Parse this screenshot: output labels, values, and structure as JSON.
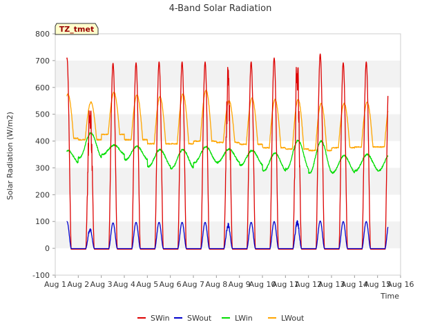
{
  "chart_data": {
    "type": "line",
    "title": "4-Band Solar Radiation",
    "xlabel": "Time",
    "ylabel": "Solar Radiation (W/m2)",
    "xlim": [
      1,
      16
    ],
    "ylim": [
      -100,
      800
    ],
    "x_ticks": [
      {
        "value": 1,
        "label": "Aug 1"
      },
      {
        "value": 2,
        "label": "Aug 2"
      },
      {
        "value": 3,
        "label": "Aug 3"
      },
      {
        "value": 4,
        "label": "Aug 4"
      },
      {
        "value": 5,
        "label": "Aug 5"
      },
      {
        "value": 6,
        "label": "Aug 6"
      },
      {
        "value": 7,
        "label": "Aug 7"
      },
      {
        "value": 8,
        "label": "Aug 8"
      },
      {
        "value": 9,
        "label": "Aug 9"
      },
      {
        "value": 10,
        "label": "Aug 10"
      },
      {
        "value": 11,
        "label": "Aug 11"
      },
      {
        "value": 12,
        "label": "Aug 12"
      },
      {
        "value": 13,
        "label": "Aug 13"
      },
      {
        "value": 14,
        "label": "Aug 14"
      },
      {
        "value": 15,
        "label": "Aug 15"
      },
      {
        "value": 16,
        "label": "Aug 16"
      }
    ],
    "y_ticks": [
      -100,
      0,
      100,
      200,
      300,
      400,
      500,
      600,
      700,
      800
    ],
    "grid": "horizontal bands",
    "annotation": "TZ_tmet",
    "legend_position": "bottom",
    "data_range_x": [
      1.5,
      15.45
    ],
    "daily": [
      {
        "day": 1,
        "swin_peak": 710,
        "swout_peak": 100,
        "lwin_min": 318,
        "lwin_max": 365,
        "lwout_min": 410,
        "lwout_max": 575
      },
      {
        "day": 2,
        "swin_peak": 575,
        "swout_peak": 78,
        "lwin_min": 338,
        "lwin_max": 430,
        "lwout_min": 405,
        "lwout_max": 545
      },
      {
        "day": 3,
        "swin_peak": 690,
        "swout_peak": 95,
        "lwin_min": 350,
        "lwin_max": 385,
        "lwout_min": 425,
        "lwout_max": 582
      },
      {
        "day": 4,
        "swin_peak": 692,
        "swout_peak": 97,
        "lwin_min": 330,
        "lwin_max": 380,
        "lwout_min": 405,
        "lwout_max": 572
      },
      {
        "day": 5,
        "swin_peak": 695,
        "swout_peak": 97,
        "lwin_min": 305,
        "lwin_max": 368,
        "lwout_min": 390,
        "lwout_max": 565
      },
      {
        "day": 6,
        "swin_peak": 695,
        "swout_peak": 97,
        "lwin_min": 298,
        "lwin_max": 368,
        "lwout_min": 390,
        "lwout_max": 575
      },
      {
        "day": 7,
        "swin_peak": 695,
        "swout_peak": 97,
        "lwin_min": 320,
        "lwin_max": 378,
        "lwout_min": 400,
        "lwout_max": 590
      },
      {
        "day": 8,
        "swin_peak": 690,
        "swout_peak": 95,
        "lwin_min": 320,
        "lwin_max": 370,
        "lwout_min": 395,
        "lwout_max": 550
      },
      {
        "day": 9,
        "swin_peak": 695,
        "swout_peak": 97,
        "lwin_min": 310,
        "lwin_max": 365,
        "lwout_min": 388,
        "lwout_max": 560
      },
      {
        "day": 10,
        "swin_peak": 710,
        "swout_peak": 100,
        "lwin_min": 288,
        "lwin_max": 355,
        "lwout_min": 375,
        "lwout_max": 555
      },
      {
        "day": 11,
        "swin_peak": 745,
        "swout_peak": 108,
        "lwin_min": 295,
        "lwin_max": 402,
        "lwout_min": 370,
        "lwout_max": 555
      },
      {
        "day": 12,
        "swin_peak": 725,
        "swout_peak": 102,
        "lwin_min": 280,
        "lwin_max": 400,
        "lwout_min": 365,
        "lwout_max": 540
      },
      {
        "day": 13,
        "swin_peak": 692,
        "swout_peak": 100,
        "lwin_min": 282,
        "lwin_max": 345,
        "lwout_min": 375,
        "lwout_max": 540
      },
      {
        "day": 14,
        "swin_peak": 695,
        "swout_peak": 100,
        "lwin_min": 290,
        "lwin_max": 350,
        "lwout_min": 378,
        "lwout_max": 545
      }
    ],
    "series": [
      {
        "name": "SWin",
        "color": "#dd0000"
      },
      {
        "name": "SWout",
        "color": "#0000cc"
      },
      {
        "name": "LWin",
        "color": "#00dd00"
      },
      {
        "name": "LWout",
        "color": "#ffa500"
      }
    ]
  }
}
